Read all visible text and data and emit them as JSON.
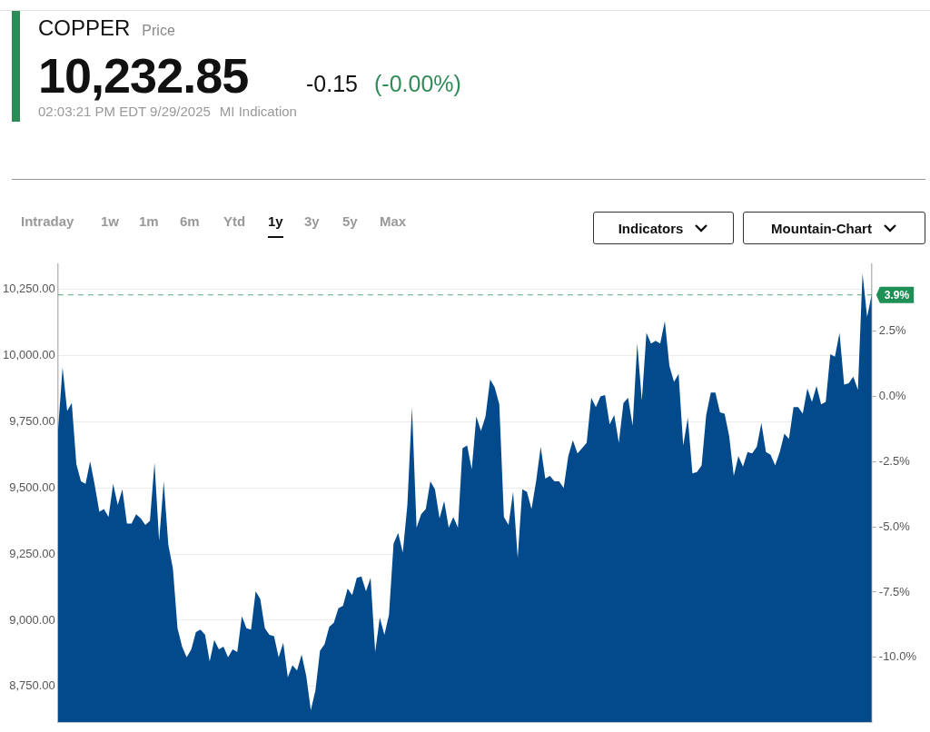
{
  "chart_data": {
    "type": "area",
    "title": "COPPER",
    "subtitle": "Price",
    "annotations": [
      "10,232.85",
      "-0.15",
      "(-0.00%)",
      "02:03:21 PM EDT 9/29/2025",
      "MI Indication",
      "Intraday",
      "1w",
      "1m",
      "6m",
      "Ytd",
      "1y",
      "3y",
      "5y",
      "Max",
      "Indicators",
      "Mountain-Chart"
    ],
    "categories": [
      null,
      null,
      null,
      null,
      null,
      null,
      null,
      null,
      null,
      null,
      null,
      null,
      null,
      null,
      null,
      null,
      null,
      null,
      null,
      null,
      null,
      null,
      null,
      null,
      null,
      null,
      null,
      null,
      null,
      null,
      null,
      null,
      null,
      null,
      null,
      null,
      null,
      null,
      null,
      null,
      null,
      null,
      null,
      null,
      null,
      null,
      null,
      null,
      null,
      null,
      null,
      null,
      null,
      null,
      null,
      null,
      null,
      null,
      null,
      null,
      null,
      null,
      null,
      null,
      null,
      null,
      null,
      null,
      null,
      null,
      null,
      null,
      null,
      null,
      null,
      null,
      null,
      null,
      null,
      null,
      null,
      null,
      null,
      null,
      null,
      null,
      null,
      null,
      null,
      null,
      null,
      null,
      null,
      null,
      null,
      null,
      null,
      null,
      null,
      null,
      null,
      null,
      null,
      null,
      null,
      null,
      null,
      null,
      null,
      null,
      null,
      null,
      null,
      null,
      null,
      null,
      null,
      null,
      null,
      null,
      null,
      null,
      null,
      null,
      null,
      null,
      null,
      null,
      null,
      null,
      null,
      null,
      null,
      null,
      null,
      null,
      null,
      null,
      null,
      null,
      null,
      null,
      null,
      null,
      null,
      null,
      null,
      null,
      null,
      null,
      null,
      null,
      null,
      null,
      null,
      null,
      null,
      null,
      null,
      null,
      null,
      null,
      null,
      null,
      null,
      null,
      null,
      null,
      null,
      null,
      null,
      null,
      null,
      null,
      null,
      null,
      null,
      null
    ],
    "series": [
      {
        "color": "#034a8c",
        "values": [
          9715,
          9955,
          9790,
          9820,
          9590,
          9525,
          9515,
          9600,
          9510,
          9410,
          9420,
          9390,
          9515,
          9435,
          9495,
          9365,
          9365,
          9400,
          9385,
          9360,
          9375,
          9595,
          9300,
          9525,
          9285,
          9195,
          8970,
          8900,
          8860,
          8890,
          8955,
          8965,
          8945,
          8845,
          8925,
          8890,
          8900,
          8860,
          8890,
          8880,
          9015,
          8970,
          8965,
          9110,
          9080,
          8970,
          8945,
          8940,
          8860,
          8915,
          8785,
          8830,
          8810,
          8870,
          8790,
          8660,
          8735,
          8885,
          8910,
          8975,
          8990,
          9045,
          9055,
          9120,
          9095,
          9160,
          9165,
          9110,
          9160,
          8880,
          9010,
          8945,
          9020,
          9290,
          9330,
          9255,
          9435,
          9805,
          9350,
          9400,
          9420,
          9525,
          9495,
          9385,
          9450,
          9350,
          9390,
          9350,
          9650,
          9660,
          9570,
          9770,
          9715,
          9770,
          9910,
          9880,
          9815,
          9390,
          9360,
          9485,
          9235,
          9495,
          9485,
          9420,
          9525,
          9655,
          9535,
          9545,
          9525,
          9525,
          9500,
          9620,
          9680,
          9630,
          9650,
          9670,
          9840,
          9805,
          9845,
          9850,
          9740,
          9775,
          9670,
          9820,
          9840,
          9735,
          10045,
          9830,
          10085,
          10045,
          10055,
          10045,
          10130,
          9960,
          9900,
          9930,
          9660,
          9765,
          9555,
          9560,
          9585,
          9775,
          9860,
          9860,
          9785,
          9780,
          9695,
          9545,
          9620,
          9580,
          9635,
          9630,
          9655,
          9745,
          9635,
          9625,
          9585,
          9635,
          9705,
          9685,
          9805,
          9805,
          9780,
          9875,
          9825,
          9885,
          9815,
          9825,
          10005,
          9995,
          10085,
          9890,
          9895,
          9920,
          9870,
          10310,
          10145,
          10230
        ]
      }
    ],
    "ylim": [
      8615,
      10345
    ],
    "yticks": [
      {
        "value": 8750,
        "label": "8,750.00"
      },
      {
        "value": 9000,
        "label": "9,000.00"
      },
      {
        "value": 9250,
        "label": "9,250.00"
      },
      {
        "value": 9500,
        "label": "9,500.00"
      },
      {
        "value": 9750,
        "label": "9,750.00"
      },
      {
        "value": 10000,
        "label": "10,000.00"
      },
      {
        "value": 10250,
        "label": "10,250.00"
      }
    ],
    "y2lim": [
      -12.49,
      5.08
    ],
    "y2ticks": [
      {
        "value": -10,
        "label": "-10.0%"
      },
      {
        "value": -7.5,
        "label": "-7.5%"
      },
      {
        "value": -5,
        "label": "-5.0%"
      },
      {
        "value": -2.5,
        "label": "-2.5%"
      },
      {
        "value": 0,
        "label": "0.0%"
      },
      {
        "value": 2.5,
        "label": "2.5%"
      }
    ],
    "ref_lines": [
      {
        "axis": "y2",
        "value": 3.9,
        "label": "3.9%",
        "color": "#1e8f55",
        "line_style": "dashed"
      }
    ],
    "grid": "y",
    "legend": false
  }
}
